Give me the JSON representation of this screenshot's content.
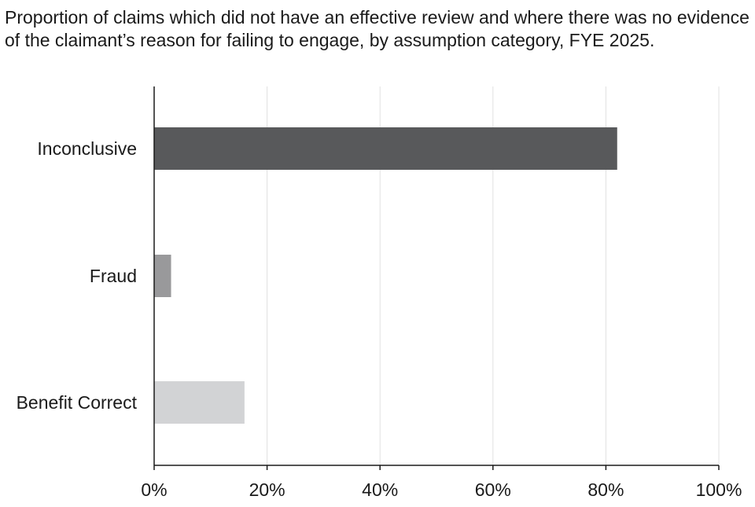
{
  "chart_data": {
    "type": "bar",
    "orientation": "horizontal",
    "title": "Proportion of claims which did not have an effective review and where there was no evidence of the claimant’s reason for failing to engage, by assumption category, FYE 2025.",
    "categories": [
      "Inconclusive",
      "Fraud",
      "Benefit Correct"
    ],
    "values": [
      0.82,
      0.03,
      0.16
    ],
    "colors": [
      "#58595b",
      "#99999b",
      "#d2d3d5"
    ],
    "xlim": [
      0,
      1
    ],
    "xticks": [
      0,
      0.2,
      0.4,
      0.6,
      0.8,
      1.0
    ],
    "xtick_labels": [
      "0%",
      "20%",
      "40%",
      "60%",
      "80%",
      "100%"
    ],
    "grid": "vertical",
    "gridline_color": "#e0e0e0",
    "axis_color": "#1a1a1a",
    "legend": "none"
  }
}
